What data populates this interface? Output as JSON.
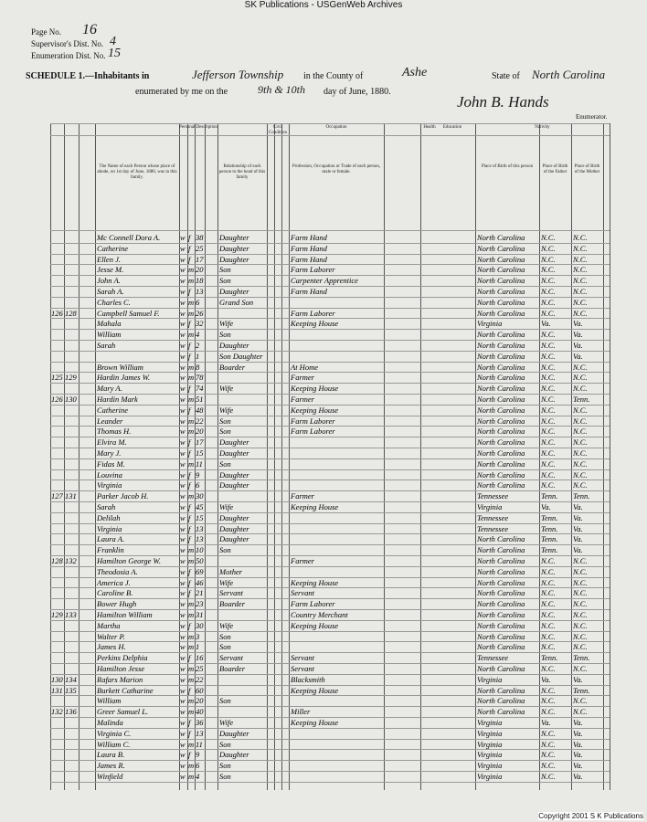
{
  "banner": "SK Publications - USGenWeb Archives",
  "header": {
    "page_label": "Page No.",
    "page": "16",
    "supervisor_label": "Supervisor's Dist. No.",
    "supervisor": "4",
    "enumeration_label": "Enumeration Dist. No.",
    "enumeration": "15",
    "schedule": "SCHEDULE 1.—Inhabitants in",
    "township": "Jefferson Township",
    "county_label": "in the County of",
    "county": "Ashe",
    "state_label": "State of",
    "state": "North Carolina",
    "enumerated": "enumerated by me on the",
    "days": "9th & 10th",
    "month": "day of June, 1880.",
    "enumerator": "John B. Hands",
    "enumerator_label": "Enumerator."
  },
  "columns": {
    "groups": [
      "Personal Description",
      "Civil Condition",
      "Occupation",
      "Health",
      "Education",
      "Nativity"
    ],
    "name": "The Name of each Person whose place of abode, on 1st day of June, 1880, was in this family.",
    "relation": "Relationship of each person to the head of this family",
    "occupation": "Profession, Occupation or Trade of each person, male or female.",
    "birth": "Place of Birth of this person",
    "father": "Place of Birth of the Father",
    "mother": "Place of Birth of the Mother"
  },
  "table": {
    "rows": [
      [
        null,
        null,
        "Mc Connell Dora A.",
        "w",
        "f",
        "38",
        "Daughter",
        "Farm Hand",
        "North Carolina",
        "N.C.",
        "N.C."
      ],
      [
        null,
        null,
        "Catherine",
        "w",
        "f",
        "25",
        "Daughter",
        "Farm Hand",
        "North Carolina",
        "N.C.",
        "N.C."
      ],
      [
        null,
        null,
        "Ellen J.",
        "w",
        "f",
        "17",
        "Daughter",
        "Farm Hand",
        "North Carolina",
        "N.C.",
        "N.C."
      ],
      [
        null,
        null,
        "Jesse M.",
        "w",
        "m",
        "20",
        "Son",
        "Farm Laborer",
        "North Carolina",
        "N.C.",
        "N.C."
      ],
      [
        null,
        null,
        "John A.",
        "w",
        "m",
        "18",
        "Son",
        "Carpenter Apprentice",
        "North Carolina",
        "N.C.",
        "N.C."
      ],
      [
        null,
        null,
        "Sarah A.",
        "w",
        "f",
        "13",
        "Daughter",
        "Farm Hand",
        "North Carolina",
        "N.C.",
        "N.C."
      ],
      [
        null,
        null,
        "Charles C.",
        "w",
        "m",
        "6",
        "Grand Son",
        null,
        "North Carolina",
        "N.C.",
        "N.C."
      ],
      [
        "126",
        "128",
        "Campbell Samuel F.",
        "w",
        "m",
        "26",
        null,
        "Farm Laborer",
        "North Carolina",
        "N.C.",
        "N.C."
      ],
      [
        null,
        null,
        "Mahala",
        "w",
        "f",
        "32",
        "Wife",
        "Keeping House",
        "Virginia",
        "Va.",
        "Va."
      ],
      [
        null,
        null,
        "William",
        "w",
        "m",
        "4",
        "Son",
        null,
        "North Carolina",
        "N.C.",
        "Va."
      ],
      [
        null,
        null,
        "Sarah",
        "w",
        "f",
        "2",
        "Daughter",
        null,
        "North Carolina",
        "N.C.",
        "Va."
      ],
      [
        null,
        null,
        null,
        "w",
        "f",
        "1",
        "Son Daughter",
        null,
        "North Carolina",
        "N.C.",
        "Va."
      ],
      [
        null,
        null,
        "Brown William",
        "w",
        "m",
        "8",
        "Boarder",
        "At Home",
        "North Carolina",
        "N.C.",
        "N.C."
      ],
      [
        "125",
        "129",
        "Hardin James W.",
        "w",
        "m",
        "78",
        null,
        "Farmer",
        "North Carolina",
        "N.C.",
        "N.C."
      ],
      [
        null,
        null,
        "Mary A.",
        "w",
        "f",
        "74",
        "Wife",
        "Keeping House",
        "North Carolina",
        "N.C.",
        "N.C."
      ],
      [
        "126",
        "130",
        "Hardin Mark",
        "w",
        "m",
        "51",
        null,
        "Farmer",
        "North Carolina",
        "N.C.",
        "Tenn."
      ],
      [
        null,
        null,
        "Catherine",
        "w",
        "f",
        "48",
        "Wife",
        "Keeping House",
        "North Carolina",
        "N.C.",
        "N.C."
      ],
      [
        null,
        null,
        "Leander",
        "w",
        "m",
        "22",
        "Son",
        "Farm Laborer",
        "North Carolina",
        "N.C.",
        "N.C."
      ],
      [
        null,
        null,
        "Thomas H.",
        "w",
        "m",
        "20",
        "Son",
        "Farm Laborer",
        "North Carolina",
        "N.C.",
        "N.C."
      ],
      [
        null,
        null,
        "Elvira M.",
        "w",
        "f",
        "17",
        "Daughter",
        null,
        "North Carolina",
        "N.C.",
        "N.C."
      ],
      [
        null,
        null,
        "Mary J.",
        "w",
        "f",
        "15",
        "Daughter",
        null,
        "North Carolina",
        "N.C.",
        "N.C."
      ],
      [
        null,
        null,
        "Fidas M.",
        "w",
        "m",
        "11",
        "Son",
        null,
        "North Carolina",
        "N.C.",
        "N.C."
      ],
      [
        null,
        null,
        "Louvina",
        "w",
        "f",
        "9",
        "Daughter",
        null,
        "North Carolina",
        "N.C.",
        "N.C."
      ],
      [
        null,
        null,
        "Virginia",
        "w",
        "f",
        "6",
        "Daughter",
        null,
        "North Carolina",
        "N.C.",
        "N.C."
      ],
      [
        "127",
        "131",
        "Parker Jacob H.",
        "w",
        "m",
        "30",
        null,
        "Farmer",
        "Tennessee",
        "Tenn.",
        "Tenn."
      ],
      [
        null,
        null,
        "Sarah",
        "w",
        "f",
        "45",
        "Wife",
        "Keeping House",
        "Virginia",
        "Va.",
        "Va."
      ],
      [
        null,
        null,
        "Delilah",
        "w",
        "f",
        "15",
        "Daughter",
        null,
        "Tennessee",
        "Tenn.",
        "Va."
      ],
      [
        null,
        null,
        "Virginia",
        "w",
        "f",
        "13",
        "Daughter",
        null,
        "Tennessee",
        "Tenn.",
        "Va."
      ],
      [
        null,
        null,
        "Laura A.",
        "w",
        "f",
        "13",
        "Daughter",
        null,
        "North Carolina",
        "Tenn.",
        "Va."
      ],
      [
        null,
        null,
        "Franklin",
        "w",
        "m",
        "10",
        "Son",
        null,
        "North Carolina",
        "Tenn.",
        "Va."
      ],
      [
        "128",
        "132",
        "Hamilton George W.",
        "w",
        "m",
        "50",
        null,
        "Farmer",
        "North Carolina",
        "N.C.",
        "N.C."
      ],
      [
        null,
        null,
        "Theodosia A.",
        "w",
        "f",
        "69",
        "Mother",
        null,
        "North Carolina",
        "N.C.",
        "N.C."
      ],
      [
        null,
        null,
        "America J.",
        "w",
        "f",
        "46",
        "Wife",
        "Keeping House",
        "North Carolina",
        "N.C.",
        "N.C."
      ],
      [
        null,
        null,
        "Caroline B.",
        "w",
        "f",
        "21",
        "Servant",
        "Servant",
        "North Carolina",
        "N.C.",
        "N.C."
      ],
      [
        null,
        null,
        "Bower Hugh",
        "w",
        "m",
        "23",
        "Boarder",
        "Farm Laborer",
        "North Carolina",
        "N.C.",
        "N.C."
      ],
      [
        "129",
        "133",
        "Hamilton William",
        "w",
        "m",
        "31",
        null,
        "Country Merchant",
        "North Carolina",
        "N.C.",
        "N.C."
      ],
      [
        null,
        null,
        "Martha",
        "w",
        "f",
        "30",
        "Wife",
        "Keeping House",
        "North Carolina",
        "N.C.",
        "N.C."
      ],
      [
        null,
        null,
        "Walter P.",
        "w",
        "m",
        "3",
        "Son",
        null,
        "North Carolina",
        "N.C.",
        "N.C."
      ],
      [
        null,
        null,
        "James H.",
        "w",
        "m",
        "1",
        "Son",
        null,
        "North Carolina",
        "N.C.",
        "N.C."
      ],
      [
        null,
        null,
        "Perkins Delphia",
        "w",
        "f",
        "16",
        "Servant",
        "Servant",
        "Tennessee",
        "Tenn.",
        "Tenn."
      ],
      [
        null,
        null,
        "Hamilton Jesse",
        "w",
        "m",
        "25",
        "Boarder",
        "Servant",
        "North Carolina",
        "N.C.",
        "N.C."
      ],
      [
        "130",
        "134",
        "Rafars Marion",
        "w",
        "m",
        "22",
        null,
        "Blacksmith",
        "Virginia",
        "Va.",
        "Va."
      ],
      [
        "131",
        "135",
        "Burkett Catharine",
        "w",
        "f",
        "60",
        null,
        "Keeping House",
        "North Carolina",
        "N.C.",
        "Tenn."
      ],
      [
        null,
        null,
        "William",
        "w",
        "m",
        "20",
        "Son",
        null,
        "North Carolina",
        "N.C.",
        "N.C."
      ],
      [
        "132",
        "136",
        "Greer Samuel L.",
        "w",
        "m",
        "40",
        null,
        "Miller",
        "North Carolina",
        "N.C.",
        "N.C."
      ],
      [
        null,
        null,
        "Malinda",
        "w",
        "f",
        "36",
        "Wife",
        "Keeping House",
        "Virginia",
        "Va.",
        "Va."
      ],
      [
        null,
        null,
        "Virginia C.",
        "w",
        "f",
        "13",
        "Daughter",
        null,
        "Virginia",
        "N.C.",
        "Va."
      ],
      [
        null,
        null,
        "William C.",
        "w",
        "m",
        "11",
        "Son",
        null,
        "Virginia",
        "N.C.",
        "Va."
      ],
      [
        null,
        null,
        "Laura B.",
        "w",
        "f",
        "9",
        "Daughter",
        null,
        "Virginia",
        "N.C.",
        "Va."
      ],
      [
        null,
        null,
        "James R.",
        "w",
        "m",
        "6",
        "Son",
        null,
        "Virginia",
        "N.C.",
        "Va."
      ],
      [
        null,
        null,
        "Winfield",
        "w",
        "m",
        "4",
        "Son",
        null,
        "Virginia",
        "N.C.",
        "Va."
      ]
    ]
  },
  "footer": "Copyright 2001 S K Publications"
}
